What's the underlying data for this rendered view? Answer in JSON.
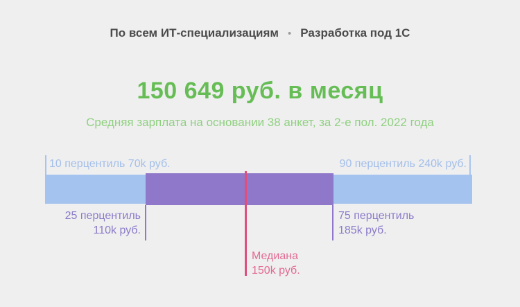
{
  "header": {
    "tabs": [
      {
        "label": "По всем ИТ-специализациям"
      },
      {
        "label": "Разработка под 1С"
      }
    ],
    "separator": "•"
  },
  "summary": {
    "title": "150 649 руб. в месяц",
    "subtitle": "Средняя зарплата на основании 38 анкет, за 2-е пол. 2022 года"
  },
  "chart": {
    "labels": {
      "p10": "10 перцентиль 70k руб.",
      "p90": "90 перцентиль 240k руб.",
      "p25_line1": "25 перцентиль",
      "p25_line2": "110k руб.",
      "p75_line1": "75 перцентиль",
      "p75_line2": "185k руб.",
      "median_line1": "Медиана",
      "median_line2": "150k руб."
    },
    "colors": {
      "range_bar": "#a5c3ef",
      "iqr_bar": "#8f77c9",
      "median_line": "#e04e7c",
      "blue_text": "#a3bfe9",
      "purple_text": "#8b7bc8",
      "pink_text": "#e26a91",
      "title_green": "#67bd55",
      "subtitle_green": "#8fd07f",
      "header_text": "#4b4b4b",
      "background": "#efeff0"
    }
  },
  "chart_data": {
    "type": "bar",
    "variant": "percentile-range",
    "title": "150 649 руб. в месяц",
    "subtitle": "Средняя зарплата на основании 38 анкет, за 2-е пол. 2022 года",
    "unit": "тыс. руб. в месяц",
    "mean_salary_rub": 150649,
    "sample_size": 38,
    "period": "2-е пол. 2022 года",
    "percentiles": {
      "p10": 70,
      "p25": 110,
      "median": 150,
      "p75": 185,
      "p90": 240
    },
    "x_range": [
      70,
      240
    ],
    "legend_position": "none",
    "grid": false
  }
}
